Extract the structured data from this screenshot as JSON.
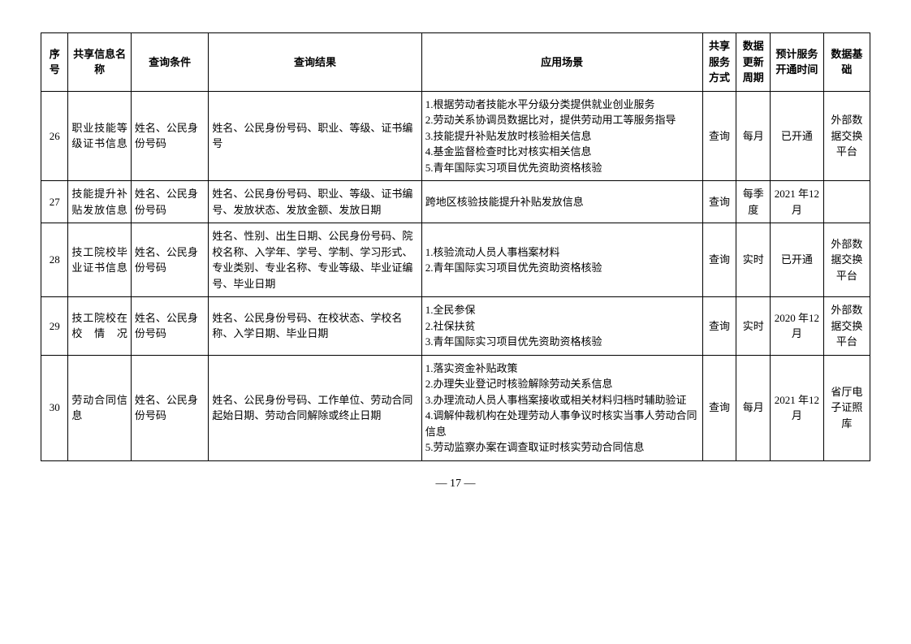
{
  "columns": {
    "seq": "序号",
    "name": "共享信息名称",
    "cond": "查询条件",
    "result": "查询结果",
    "scene": "应用场景",
    "share": "共享服务方式",
    "cycle": "数据更新周期",
    "time": "预计服务开通时间",
    "basis": "数据基础"
  },
  "rows": [
    {
      "seq": "26",
      "name": "职业技能等级证书信息",
      "cond": "姓名、公民身份号码",
      "result": "姓名、公民身份号码、职业、等级、证书编号",
      "scene": "1.根据劳动者技能水平分级分类提供就业创业服务\n2.劳动关系协调员数据比对，提供劳动用工等服务指导\n3.技能提升补贴发放时核验相关信息\n4.基金监督检查时比对核实相关信息\n5.青年国际实习项目优先资助资格核验",
      "share": "查询",
      "cycle": "每月",
      "time": "已开通",
      "basis": "外部数据交换平台"
    },
    {
      "seq": "27",
      "name": "技能提升补贴发放信息",
      "cond": "姓名、公民身份号码",
      "result": "姓名、公民身份号码、职业、等级、证书编号、发放状态、发放金额、发放日期",
      "scene": "跨地区核验技能提升补贴发放信息",
      "share": "查询",
      "cycle": "每季度",
      "time": "2021 年12 月",
      "basis": ""
    },
    {
      "seq": "28",
      "name": "技工院校毕业证书信息",
      "cond": "姓名、公民身份号码",
      "result": "姓名、性别、出生日期、公民身份号码、院校名称、入学年、学号、学制、学习形式、专业类别、专业名称、专业等级、毕业证编号、毕业日期",
      "scene": "1.核验流动人员人事档案材料\n2.青年国际实习项目优先资助资格核验",
      "share": "查询",
      "cycle": "实时",
      "time": "已开通",
      "basis": "外部数据交换平台"
    },
    {
      "seq": "29",
      "name": "技工院校在校情况",
      "cond": "姓名、公民身份号码",
      "result": "姓名、公民身份号码、在校状态、学校名称、入学日期、毕业日期",
      "scene": "1.全民参保\n2.社保扶贫\n3.青年国际实习项目优先资助资格核验",
      "share": "查询",
      "cycle": "实时",
      "time": "2020 年12 月",
      "basis": "外部数据交换平台"
    },
    {
      "seq": "30",
      "name": "劳动合同信息",
      "cond": "姓名、公民身份号码",
      "result": "姓名、公民身份号码、工作单位、劳动合同起始日期、劳动合同解除或终止日期",
      "scene": "1.落实资金补贴政策\n2.办理失业登记时核验解除劳动关系信息\n3.办理流动人员人事档案接收或相关材料归档时辅助验证\n4.调解仲裁机构在处理劳动人事争议时核实当事人劳动合同信息\n5.劳动监察办案在调查取证时核实劳动合同信息",
      "share": "查询",
      "cycle": "每月",
      "time": "2021 年12 月",
      "basis": "省厅电子证照库"
    }
  ],
  "pageNumber": "— 17 —"
}
